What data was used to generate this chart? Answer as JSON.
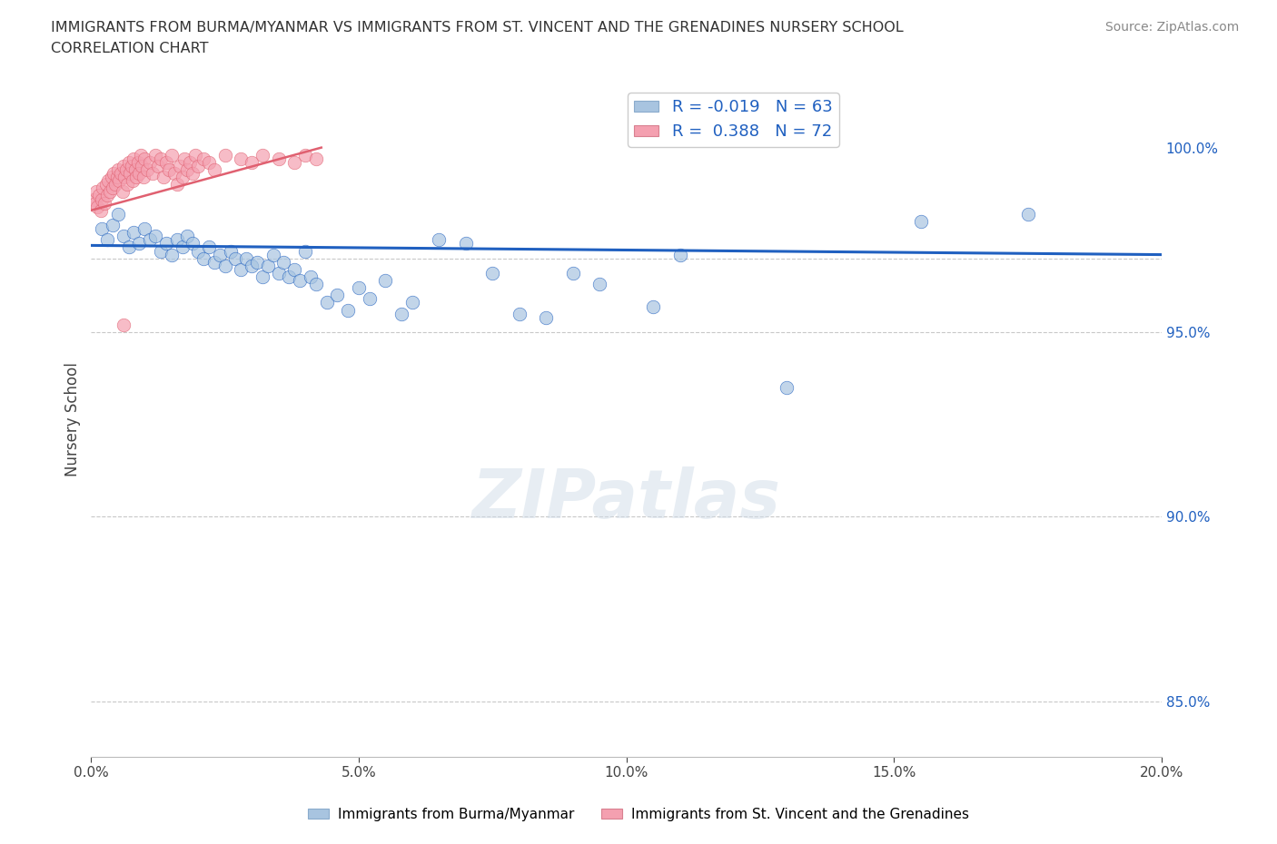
{
  "title_line1": "IMMIGRANTS FROM BURMA/MYANMAR VS IMMIGRANTS FROM ST. VINCENT AND THE GRENADINES NURSERY SCHOOL",
  "title_line2": "CORRELATION CHART",
  "source": "Source: ZipAtlas.com",
  "ylabel": "Nursery School",
  "color_blue": "#a8c4e0",
  "color_pink": "#f4a0b0",
  "trendline_blue": "#2060c0",
  "trendline_pink": "#e06070",
  "legend_label1": "Immigrants from Burma/Myanmar",
  "legend_label2": "Immigrants from St. Vincent and the Grenadines",
  "blue_scatter": [
    [
      0.2,
      97.8
    ],
    [
      0.3,
      97.5
    ],
    [
      0.4,
      97.9
    ],
    [
      0.5,
      98.2
    ],
    [
      0.6,
      97.6
    ],
    [
      0.7,
      97.3
    ],
    [
      0.8,
      97.7
    ],
    [
      0.9,
      97.4
    ],
    [
      1.0,
      97.8
    ],
    [
      1.1,
      97.5
    ],
    [
      1.2,
      97.6
    ],
    [
      1.3,
      97.2
    ],
    [
      1.4,
      97.4
    ],
    [
      1.5,
      97.1
    ],
    [
      1.6,
      97.5
    ],
    [
      1.7,
      97.3
    ],
    [
      1.8,
      97.6
    ],
    [
      1.9,
      97.4
    ],
    [
      2.0,
      97.2
    ],
    [
      2.1,
      97.0
    ],
    [
      2.2,
      97.3
    ],
    [
      2.3,
      96.9
    ],
    [
      2.4,
      97.1
    ],
    [
      2.5,
      96.8
    ],
    [
      2.6,
      97.2
    ],
    [
      2.7,
      97.0
    ],
    [
      2.8,
      96.7
    ],
    [
      2.9,
      97.0
    ],
    [
      3.0,
      96.8
    ],
    [
      3.1,
      96.9
    ],
    [
      3.2,
      96.5
    ],
    [
      3.3,
      96.8
    ],
    [
      3.4,
      97.1
    ],
    [
      3.5,
      96.6
    ],
    [
      3.6,
      96.9
    ],
    [
      3.7,
      96.5
    ],
    [
      3.8,
      96.7
    ],
    [
      3.9,
      96.4
    ],
    [
      4.0,
      97.2
    ],
    [
      4.1,
      96.5
    ],
    [
      4.2,
      96.3
    ],
    [
      4.4,
      95.8
    ],
    [
      4.6,
      96.0
    ],
    [
      4.8,
      95.6
    ],
    [
      5.0,
      96.2
    ],
    [
      5.2,
      95.9
    ],
    [
      5.5,
      96.4
    ],
    [
      5.8,
      95.5
    ],
    [
      6.0,
      95.8
    ],
    [
      6.5,
      97.5
    ],
    [
      7.0,
      97.4
    ],
    [
      7.5,
      96.6
    ],
    [
      8.0,
      95.5
    ],
    [
      8.5,
      95.4
    ],
    [
      9.0,
      96.6
    ],
    [
      9.5,
      96.3
    ],
    [
      10.5,
      95.7
    ],
    [
      11.0,
      97.1
    ],
    [
      13.0,
      93.5
    ],
    [
      15.5,
      98.0
    ],
    [
      17.5,
      98.2
    ]
  ],
  "pink_scatter": [
    [
      0.05,
      98.6
    ],
    [
      0.08,
      98.5
    ],
    [
      0.1,
      98.8
    ],
    [
      0.12,
      98.4
    ],
    [
      0.15,
      98.7
    ],
    [
      0.18,
      98.3
    ],
    [
      0.2,
      98.6
    ],
    [
      0.22,
      98.9
    ],
    [
      0.25,
      98.5
    ],
    [
      0.28,
      99.0
    ],
    [
      0.3,
      98.7
    ],
    [
      0.32,
      99.1
    ],
    [
      0.35,
      98.8
    ],
    [
      0.38,
      99.2
    ],
    [
      0.4,
      98.9
    ],
    [
      0.42,
      99.3
    ],
    [
      0.45,
      99.0
    ],
    [
      0.48,
      99.2
    ],
    [
      0.5,
      99.4
    ],
    [
      0.52,
      99.1
    ],
    [
      0.55,
      99.3
    ],
    [
      0.58,
      98.8
    ],
    [
      0.6,
      99.5
    ],
    [
      0.62,
      99.2
    ],
    [
      0.65,
      99.4
    ],
    [
      0.68,
      99.0
    ],
    [
      0.7,
      99.6
    ],
    [
      0.72,
      99.3
    ],
    [
      0.75,
      99.5
    ],
    [
      0.78,
      99.1
    ],
    [
      0.8,
      99.7
    ],
    [
      0.82,
      99.4
    ],
    [
      0.85,
      99.2
    ],
    [
      0.88,
      99.6
    ],
    [
      0.9,
      99.3
    ],
    [
      0.92,
      99.8
    ],
    [
      0.95,
      99.5
    ],
    [
      0.98,
      99.2
    ],
    [
      1.0,
      99.7
    ],
    [
      1.05,
      99.4
    ],
    [
      1.1,
      99.6
    ],
    [
      1.15,
      99.3
    ],
    [
      1.2,
      99.8
    ],
    [
      1.25,
      99.5
    ],
    [
      1.3,
      99.7
    ],
    [
      1.35,
      99.2
    ],
    [
      1.4,
      99.6
    ],
    [
      1.45,
      99.4
    ],
    [
      1.5,
      99.8
    ],
    [
      1.55,
      99.3
    ],
    [
      1.6,
      99.0
    ],
    [
      1.65,
      99.5
    ],
    [
      1.7,
      99.2
    ],
    [
      1.75,
      99.7
    ],
    [
      1.8,
      99.4
    ],
    [
      1.85,
      99.6
    ],
    [
      1.9,
      99.3
    ],
    [
      1.95,
      99.8
    ],
    [
      2.0,
      99.5
    ],
    [
      2.1,
      99.7
    ],
    [
      2.2,
      99.6
    ],
    [
      2.3,
      99.4
    ],
    [
      2.5,
      99.8
    ],
    [
      2.8,
      99.7
    ],
    [
      3.0,
      99.6
    ],
    [
      3.2,
      99.8
    ],
    [
      3.5,
      99.7
    ],
    [
      3.8,
      99.6
    ],
    [
      4.0,
      99.8
    ],
    [
      4.2,
      99.7
    ],
    [
      0.6,
      95.2
    ]
  ],
  "xlim": [
    0.0,
    20.0
  ],
  "ylim": [
    83.5,
    101.8
  ],
  "ytick_positions": [
    85.0,
    90.0,
    95.0,
    100.0
  ],
  "xtick_positions": [
    0.0,
    5.0,
    10.0,
    15.0,
    20.0
  ],
  "grid_lines": [
    97.0,
    95.0,
    90.0,
    85.0
  ],
  "blue_trend_x": [
    0.0,
    20.0
  ],
  "blue_trend_y": [
    97.35,
    97.1
  ],
  "pink_trend_x": [
    0.0,
    4.3
  ],
  "pink_trend_y": [
    98.3,
    100.0
  ]
}
